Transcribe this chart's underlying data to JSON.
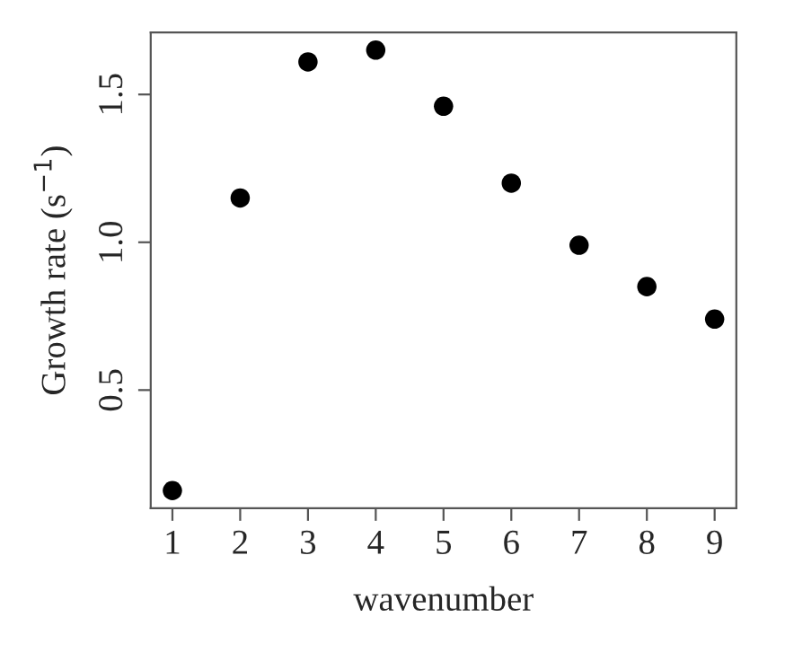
{
  "chart_data": {
    "type": "scatter",
    "xlabel": "wavenumber",
    "ylabel": "Growth rate (s$^{−1}$)",
    "x": [
      1,
      2,
      3,
      4,
      5,
      6,
      7,
      8,
      9
    ],
    "series": [
      {
        "color": "#000000",
        "values": [
          0.16,
          1.15,
          1.61,
          1.65,
          1.46,
          1.2,
          0.99,
          0.85,
          0.74
        ]
      }
    ],
    "xlim": [
      0.68,
      9.32
    ],
    "ylim": [
      0.1,
      1.71
    ],
    "xticks": [
      1,
      2,
      3,
      4,
      5,
      6,
      7,
      8,
      9
    ],
    "yticks": [
      0.5,
      {
        "value": 1,
        "label": "1.0"
      },
      1.5
    ],
    "marker": "circle",
    "grid": false,
    "legend": false
  }
}
